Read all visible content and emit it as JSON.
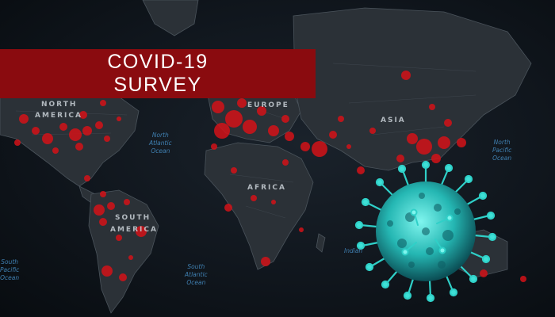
{
  "banner": {
    "line1": "COVID-19",
    "line2": "SURVEY"
  },
  "map_labels": {
    "north_america": {
      "line1": "NORTH",
      "line2": "AMERICA"
    },
    "south_america": {
      "line1": "SOUTH",
      "line2": "AMERICA"
    },
    "europe": "EUROPE",
    "asia": "ASIA",
    "africa": "AFRICA"
  },
  "ocean_labels": {
    "north_atlantic": {
      "line1": "North",
      "line2": "Atlantic",
      "line3": "Ocean"
    },
    "south_atlantic": {
      "line1": "South",
      "line2": "Atlantic",
      "line3": "Ocean"
    },
    "north_pacific": {
      "line1": "North",
      "line2": "Pacific",
      "line3": "Ocean"
    },
    "south_pacific": {
      "line1": "South",
      "line2": "Pacific",
      "line3": "Ocean"
    },
    "indian": {
      "line1": "Indian"
    }
  },
  "colors": {
    "banner": "#8a0b0f",
    "hotspot": "#d31218",
    "virus": "#3fe0d6",
    "land": "#2a3036",
    "ocean_text": "#3f7fb0"
  }
}
